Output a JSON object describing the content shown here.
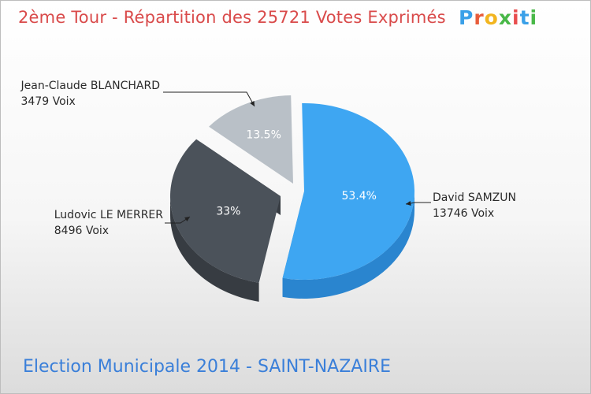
{
  "header": {
    "title": "2ème Tour - Répartition des 25721 Votes Exprimés"
  },
  "logo": {
    "text": "Proxiti",
    "letters": [
      "P",
      "r",
      "o",
      "x",
      "i",
      "t",
      "i"
    ],
    "colors": [
      "#3aa0e8",
      "#e85c3a",
      "#f2b51f",
      "#49b848",
      "#e84e4e",
      "#3aa0e8",
      "#49b848"
    ]
  },
  "footer": {
    "subtitle": "Election Municipale 2014 - SAINT-NAZAIRE"
  },
  "chart_data": {
    "type": "pie",
    "title": "2ème Tour - Répartition des 25721 Votes Exprimés",
    "total_votes": 25721,
    "slices": [
      {
        "name": "David SAMZUN",
        "votes_label": "13746 Voix",
        "votes": 13746,
        "percent_label": "53.4%",
        "percent": 53.4,
        "color": "#3ea6f2",
        "side": "#2a85cf"
      },
      {
        "name": "Ludovic LE MERRER",
        "votes_label": "8496 Voix",
        "votes": 8496,
        "percent_label": "33%",
        "percent": 33.0,
        "color": "#4b525a",
        "side": "#373c42"
      },
      {
        "name": "Jean-Claude BLANCHARD",
        "votes_label": "3479 Voix",
        "votes": 3479,
        "percent_label": "13.5%",
        "percent": 13.5,
        "color": "#b9c0c7",
        "side": "#9aa1a8"
      }
    ]
  }
}
